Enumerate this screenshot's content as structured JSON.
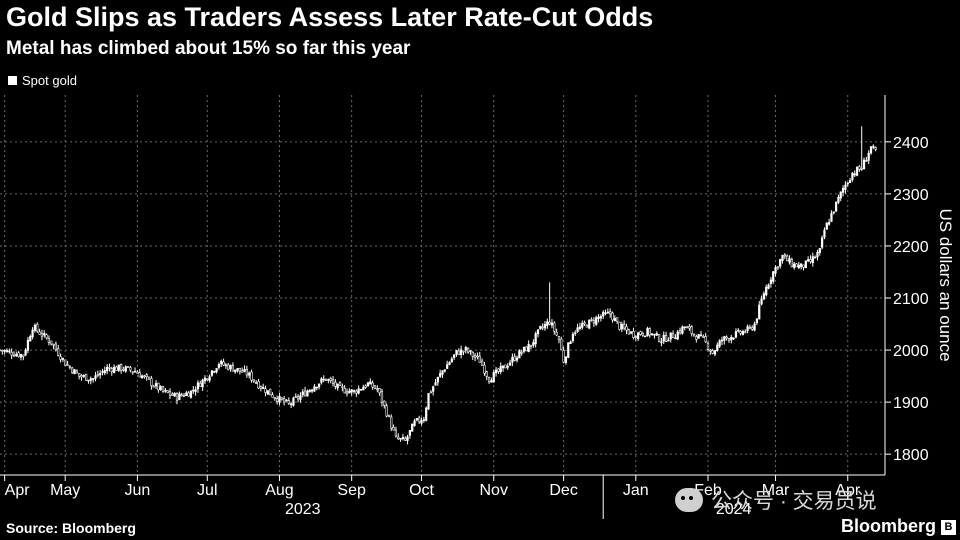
{
  "header": {
    "title": "Gold Slips as Traders Assess Later Rate-Cut Odds",
    "subtitle": "Metal has climbed about 15% so far this year"
  },
  "footer": {
    "source": "Source: Bloomberg",
    "brand": "Bloomberg",
    "brand_mark": "B",
    "watermark": "公众号 · 交易员说"
  },
  "chart_data": {
    "type": "candlestick",
    "title": "Gold Slips as Traders Assess Later Rate-Cut Odds",
    "subtitle": "Metal has climbed about 15% so far this year",
    "legend": [
      "Spot gold"
    ],
    "legend_position": "top-left",
    "ylabel": "US dollars an ounce",
    "ylim": [
      1760,
      2490
    ],
    "yticks": [
      1800,
      1900,
      2000,
      2100,
      2200,
      2300,
      2400
    ],
    "xlim": [
      0,
      380
    ],
    "grid": true,
    "x_month_ticks": [
      {
        "label": "Apr",
        "x": 2
      },
      {
        "label": "May",
        "x": 28
      },
      {
        "label": "Jun",
        "x": 59
      },
      {
        "label": "Jul",
        "x": 89
      },
      {
        "label": "Aug",
        "x": 120
      },
      {
        "label": "Sep",
        "x": 151
      },
      {
        "label": "Oct",
        "x": 181
      },
      {
        "label": "Nov",
        "x": 212
      },
      {
        "label": "Dec",
        "x": 242
      },
      {
        "label": "Jan",
        "x": 273
      },
      {
        "label": "Feb",
        "x": 304
      },
      {
        "label": "Mar",
        "x": 333
      },
      {
        "label": "Apr",
        "x": 364
      }
    ],
    "year_labels": [
      {
        "label": "2023",
        "x": 130
      },
      {
        "label": "2024",
        "x": 315
      }
    ],
    "year_separator_x": 259,
    "anchors": [
      {
        "x": 0,
        "price": 2000
      },
      {
        "x": 5,
        "price": 1995
      },
      {
        "x": 10,
        "price": 1990
      },
      {
        "x": 14,
        "price": 2045
      },
      {
        "x": 18,
        "price": 2030
      },
      {
        "x": 22,
        "price": 2015
      },
      {
        "x": 28,
        "price": 1975
      },
      {
        "x": 34,
        "price": 1950
      },
      {
        "x": 40,
        "price": 1945
      },
      {
        "x": 46,
        "price": 1965
      },
      {
        "x": 52,
        "price": 1965
      },
      {
        "x": 58,
        "price": 1960
      },
      {
        "x": 64,
        "price": 1940
      },
      {
        "x": 70,
        "price": 1920
      },
      {
        "x": 76,
        "price": 1910
      },
      {
        "x": 82,
        "price": 1920
      },
      {
        "x": 88,
        "price": 1945
      },
      {
        "x": 94,
        "price": 1975
      },
      {
        "x": 100,
        "price": 1965
      },
      {
        "x": 106,
        "price": 1955
      },
      {
        "x": 112,
        "price": 1930
      },
      {
        "x": 118,
        "price": 1910
      },
      {
        "x": 124,
        "price": 1895
      },
      {
        "x": 130,
        "price": 1915
      },
      {
        "x": 136,
        "price": 1935
      },
      {
        "x": 140,
        "price": 1945
      },
      {
        "x": 146,
        "price": 1925
      },
      {
        "x": 152,
        "price": 1920
      },
      {
        "x": 158,
        "price": 1935
      },
      {
        "x": 162,
        "price": 1925
      },
      {
        "x": 166,
        "price": 1880
      },
      {
        "x": 170,
        "price": 1830
      },
      {
        "x": 174,
        "price": 1825
      },
      {
        "x": 178,
        "price": 1860
      },
      {
        "x": 182,
        "price": 1870
      },
      {
        "x": 184,
        "price": 1915
      },
      {
        "x": 190,
        "price": 1960
      },
      {
        "x": 196,
        "price": 1995
      },
      {
        "x": 200,
        "price": 2000
      },
      {
        "x": 206,
        "price": 1980
      },
      {
        "x": 210,
        "price": 1945
      },
      {
        "x": 216,
        "price": 1965
      },
      {
        "x": 222,
        "price": 1990
      },
      {
        "x": 228,
        "price": 2010
      },
      {
        "x": 232,
        "price": 2040
      },
      {
        "x": 236,
        "price": 2055
      },
      {
        "x": 240,
        "price": 2020
      },
      {
        "x": 242,
        "price": 1980
      },
      {
        "x": 246,
        "price": 2035
      },
      {
        "x": 252,
        "price": 2050
      },
      {
        "x": 258,
        "price": 2065
      },
      {
        "x": 262,
        "price": 2070
      },
      {
        "x": 266,
        "price": 2045
      },
      {
        "x": 272,
        "price": 2030
      },
      {
        "x": 278,
        "price": 2035
      },
      {
        "x": 284,
        "price": 2020
      },
      {
        "x": 290,
        "price": 2030
      },
      {
        "x": 294,
        "price": 2045
      },
      {
        "x": 298,
        "price": 2030
      },
      {
        "x": 302,
        "price": 2020
      },
      {
        "x": 306,
        "price": 1995
      },
      {
        "x": 310,
        "price": 2020
      },
      {
        "x": 316,
        "price": 2030
      },
      {
        "x": 322,
        "price": 2040
      },
      {
        "x": 324,
        "price": 2050
      },
      {
        "x": 328,
        "price": 2110
      },
      {
        "x": 332,
        "price": 2150
      },
      {
        "x": 336,
        "price": 2180
      },
      {
        "x": 340,
        "price": 2165
      },
      {
        "x": 344,
        "price": 2160
      },
      {
        "x": 348,
        "price": 2170
      },
      {
        "x": 352,
        "price": 2190
      },
      {
        "x": 354,
        "price": 2230
      },
      {
        "x": 358,
        "price": 2270
      },
      {
        "x": 362,
        "price": 2310
      },
      {
        "x": 366,
        "price": 2340
      },
      {
        "x": 370,
        "price": 2350
      },
      {
        "x": 372,
        "price": 2370
      },
      {
        "x": 374,
        "price": 2390
      },
      {
        "x": 376,
        "price": 2380
      }
    ],
    "spikes": [
      {
        "x": 236,
        "high": 2130
      },
      {
        "x": 370,
        "high": 2430
      }
    ]
  }
}
